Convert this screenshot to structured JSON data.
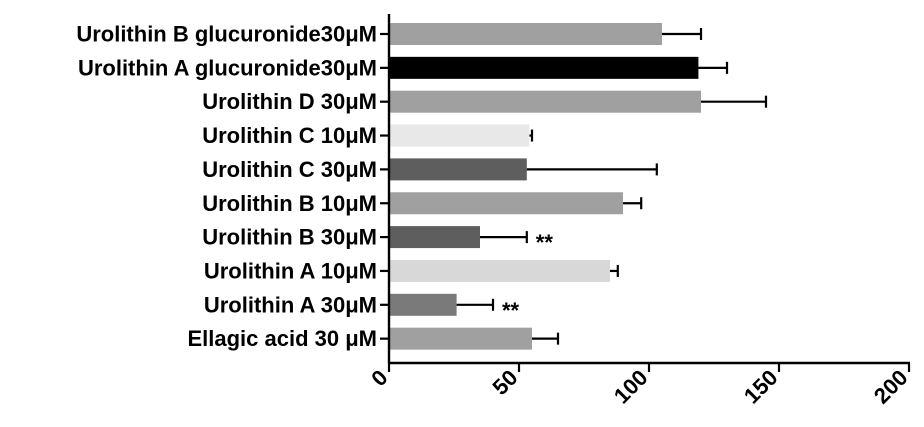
{
  "chart_data": {
    "type": "bar",
    "orientation": "horizontal",
    "title": "",
    "xlabel": "",
    "ylabel": "",
    "xlim": [
      0,
      200
    ],
    "xticks": [
      0,
      50,
      100,
      150,
      200
    ],
    "grid": false,
    "categories": [
      "Urolithin B glucuronide30μM",
      "Urolithin A glucuronide30μM",
      "Urolithin D 30μM",
      "Urolithin C 10μM",
      "Urolithin C 30μM",
      "Urolithin B 10μM",
      "Urolithin B 30μM",
      "Urolithin A 10μM",
      "Urolithin A 30μM",
      "Ellagic acid 30 μM"
    ],
    "values": [
      105,
      119,
      120,
      54,
      53,
      90,
      35,
      85,
      26,
      55
    ],
    "errors": [
      15,
      11,
      25,
      1,
      50,
      7,
      18,
      3,
      14,
      10
    ],
    "colors": [
      "#a0a0a0",
      "#000000",
      "#a0a0a0",
      "#e8e8e8",
      "#5e5e5e",
      "#a0a0a0",
      "#5e5e5e",
      "#d8d8d8",
      "#7a7a7a",
      "#a0a0a0"
    ],
    "significance": [
      "",
      "",
      "",
      "",
      "",
      "",
      "**",
      "",
      "**",
      ""
    ]
  }
}
